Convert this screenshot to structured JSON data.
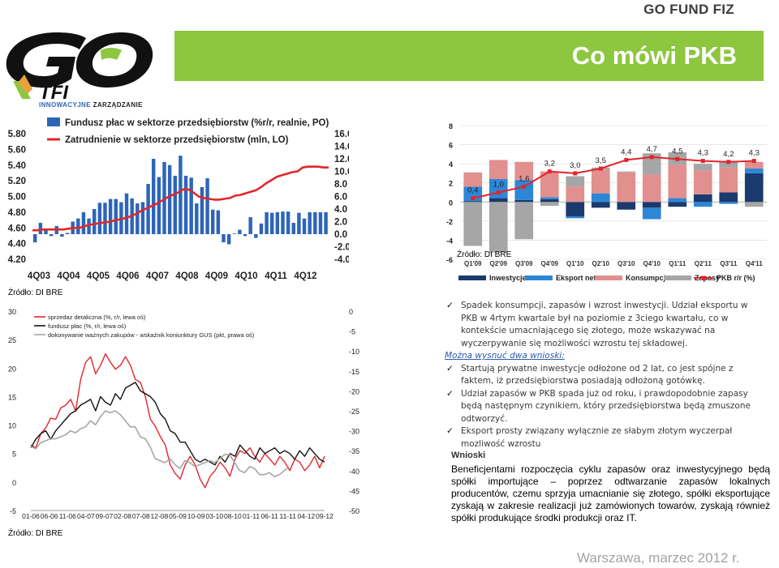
{
  "brand": "GO FUND FIZ",
  "title": "Co mówi PKB",
  "logo": {
    "tagline_bold": "INNOWACYJNE",
    "tagline_rest": " ZARZĄDZANIE",
    "letters": "GO",
    "sub": "TFI"
  },
  "colors": {
    "accent": "#8dc63f",
    "bar_blue": "#2d65b8",
    "line_red": "#e1262c"
  },
  "notes": {
    "bullet1": "Spadek konsumpcji,  zapasów i wzrost inwestycji. Udział eksportu w PKB w 4rtym kwartale był na poziomie z 3ciego kwartału, co w kontekście umacniającego się złotego, może wskazywać na wyczerpywanie się możliwości wzrostu tej składowej.",
    "subhead": "Można wysnuć dwa wnioski:",
    "bullet2": "Startują prywatne inwestycje odłożone od 2 lat, co jest spójne z faktem, iż przedsiębiorstwa posiadają odłożoną gotówkę.",
    "bullet3": "Udział zapasów w PKB spada już od roku, i prawdopodobnie zapasy będą następnym czynikiem, który przedsiębiorstwa będą zmuszone odtworzyć.",
    "bullet4": "Eksport prosty związany wyłącznie  ze słabym  złotym wyczerpał mozliwość wzrostu"
  },
  "conclusions": {
    "head": "Wnioski",
    "body": "Beneficjentami rozpoczęcia cyklu zapasów oraz inwestycyjnego będą spółki importujące – poprzez odtwarzanie zapasów lokalnych producentów, czemu sprzyja umacnianie się złotego, spółki eksportujące zyskają w zakresie realizacji już zamówionych towarów, zyskają również spółki produkujące środki produkcji oraz IT."
  },
  "footer": "Warszawa, marzec 2012 r.",
  "chart_data": [
    {
      "type": "bar",
      "legend": [
        "Fundusz płac w sektorze przedsiębiorstw (%r/r, realnie, PO)",
        "Zatrudnienie w sektorze przedsiębiorstw (mln, LO)"
      ],
      "source": "Źródło: DI  BRE",
      "left_ticks": [
        "5.80",
        "5.60",
        "5.40",
        "5.20",
        "5.00",
        "4.80",
        "4.60",
        "4.40",
        "4.20"
      ],
      "right_ticks": [
        "16.0",
        "14.0",
        "12.0",
        "10.0",
        "8.0",
        "6.0",
        "4.0",
        "2.0",
        "0.0",
        "-2.0",
        "-4.0"
      ],
      "x_labels": [
        "4Q03",
        "4Q04",
        "4Q05",
        "4Q06",
        "4Q07",
        "4Q08",
        "4Q09",
        "4Q10",
        "4Q11",
        "4Q12"
      ],
      "ylim_left": [
        4.2,
        5.8
      ],
      "ylim_right": [
        -4,
        16
      ],
      "series": [
        {
          "name": "Fundusz płac w sektorze przedsiębiorstw (%r/r, realnie, PO)",
          "kind": "bar",
          "values": [
            -1.3,
            1.8,
            0.7,
            -0.3,
            1.3,
            -0.4,
            0.2,
            2.0,
            2.5,
            3.5,
            2.5,
            4.0,
            5.0,
            5.0,
            5.6,
            5.6,
            5.1,
            6.5,
            5.7,
            4.9,
            5.1,
            8.0,
            12.0,
            9.1,
            11.5,
            11.0,
            9.3,
            12.5,
            9.3,
            9.0,
            4.9,
            7.5,
            8.9,
            3.9,
            3.8,
            -1.3,
            -1.6,
            0.1,
            0.7,
            -0.3,
            2.7,
            -0.6,
            1.7,
            3.5,
            3.4,
            3.5,
            3.6,
            3.6,
            1.8,
            3.4,
            2.5,
            3.5,
            3.5,
            3.5,
            3.5
          ]
        },
        {
          "name": "Zatrudnienie w sektorze przedsiębiorstw (mln, LO)",
          "kind": "line",
          "values": [
            4.57,
            4.57,
            4.58,
            4.58,
            4.58,
            4.58,
            4.58,
            4.59,
            4.6,
            4.6,
            4.62,
            4.64,
            4.65,
            4.66,
            4.67,
            4.68,
            4.7,
            4.71,
            4.73,
            4.75,
            4.78,
            4.82,
            4.85,
            4.88,
            4.91,
            4.95,
            4.99,
            5.02,
            5.05,
            5.09,
            5.09,
            5.05,
            5.0,
            4.98,
            4.97,
            4.96,
            4.96,
            4.97,
            4.98,
            5.01,
            5.02,
            5.04,
            5.06,
            5.08,
            5.12,
            5.17,
            5.21,
            5.25,
            5.27,
            5.29,
            5.31,
            5.32,
            5.37,
            5.38,
            5.38,
            5.38,
            5.37,
            5.37
          ]
        }
      ]
    },
    {
      "type": "bar",
      "stacked": true,
      "source": "Źródło: DI  BRE",
      "categories": [
        "Q1'09",
        "Q2'09",
        "Q3'09",
        "Q4'09",
        "Q1'10",
        "Q2'10",
        "Q3'10",
        "Q4'10",
        "Q1'11",
        "Q2'11",
        "Q3'11",
        "Q4'11"
      ],
      "ylim": [
        -6,
        8
      ],
      "y_ticks": [
        "8",
        "6",
        "4",
        "2",
        "0",
        "-2",
        "-4",
        "-6"
      ],
      "series": [
        {
          "name": "Inwestycje",
          "values": [
            0.1,
            0.4,
            0.2,
            0.3,
            -1.5,
            -0.6,
            -0.8,
            -0.6,
            -0.5,
            0.8,
            1.0,
            3.0
          ]
        },
        {
          "name": "Eksport netto",
          "values": [
            1.5,
            2.0,
            2.1,
            0.2,
            -0.2,
            0.9,
            0.0,
            -1.2,
            0.4,
            -0.5,
            -0.2,
            0.5
          ]
        },
        {
          "name": "Konsumpcja",
          "values": [
            1.5,
            2.0,
            1.9,
            2.7,
            1.6,
            2.5,
            3.1,
            2.9,
            3.5,
            2.5,
            2.6,
            0.7
          ]
        },
        {
          "name": "Zapasy",
          "values": [
            -4.6,
            -5.3,
            -3.9,
            -0.4,
            1.1,
            0.2,
            0.1,
            2.2,
            1.3,
            0.7,
            0.7,
            -0.5
          ]
        },
        {
          "name": "PKB r/r (%)",
          "kind": "line",
          "values": [
            0.4,
            1.0,
            1.6,
            3.2,
            3.0,
            3.5,
            4.4,
            4.7,
            4.5,
            4.3,
            4.2,
            4.3
          ]
        }
      ],
      "data_labels": [
        "0,4",
        "1,0",
        "1,6",
        "3,2",
        "3,0",
        "3,5",
        "4,4",
        "4,7",
        "4,5",
        "4,3",
        "4,2",
        "4,3"
      ]
    },
    {
      "type": "line",
      "source": "Źródło: DI  BRE",
      "legend": [
        "sprzedaz detaliczna (%, r/r, lewa oś)",
        "fundusz płac (%, r/r, lewa oś)",
        "dokonywanie ważnych zakupów - wskaźnik koniunktury GUS (pkt, prawa oś)"
      ],
      "left_ticks": [
        "30",
        "25",
        "20",
        "15",
        "10",
        "5",
        "0",
        "-5"
      ],
      "right_ticks": [
        "0",
        "-5",
        "-10",
        "-15",
        "-20",
        "-25",
        "-30",
        "-35",
        "-40",
        "-45",
        "-50"
      ],
      "x_labels": [
        "01-06",
        "06-06",
        "11-06",
        "04-07",
        "09-07",
        "02-08",
        "07-08",
        "12-08",
        "05-09",
        "10-09",
        "03-10",
        "08-10",
        "01-11",
        "06-11",
        "11-11",
        "04-12",
        "09-12"
      ],
      "ylim_left": [
        -5,
        30
      ],
      "ylim_right": [
        -50,
        0
      ],
      "series": [
        {
          "name": "sprzedaz detaliczna (%, r/r, lewa oś)",
          "values": [
            6.5,
            6.0,
            8.5,
            9.5,
            11.2,
            11.0,
            13.0,
            13.5,
            14.5,
            12.5,
            18.0,
            21.0,
            22.0,
            19.0,
            20.5,
            22.5,
            21.0,
            19.8,
            20.5,
            22.0,
            20.5,
            18.0,
            17.5,
            15.0,
            11.0,
            9.8,
            8.0,
            6.5,
            3.0,
            1.5,
            0.5,
            3.0,
            4.5,
            3.0,
            0.5,
            -1.0,
            1.0,
            2.0,
            3.5,
            2.5,
            1.0,
            4.0,
            5.5,
            5.0,
            6.0,
            4.5,
            3.5,
            5.0,
            4.0,
            3.0,
            4.5,
            3.5,
            2.0,
            4.0,
            3.5,
            2.0,
            3.0,
            4.5,
            2.5,
            4.5
          ]
        },
        {
          "name": "fundusz płac (%, r/r, lewa oś)",
          "values": [
            6.0,
            7.5,
            8.5,
            9.0,
            7.5,
            9.0,
            10.0,
            11.0,
            12.0,
            12.5,
            13.5,
            14.0,
            14.5,
            12.5,
            15.0,
            14.0,
            13.5,
            15.5,
            14.5,
            16.5,
            17.0,
            17.5,
            16.0,
            15.5,
            15.0,
            14.0,
            12.0,
            11.0,
            9.0,
            8.5,
            7.0,
            7.0,
            5.5,
            4.0,
            3.5,
            4.0,
            3.5,
            3.0,
            4.5,
            3.5,
            5.0,
            4.5,
            6.5,
            5.5,
            4.5,
            4.0,
            6.0,
            5.0,
            5.5,
            6.0,
            5.0,
            5.5,
            5.0,
            4.0,
            5.5,
            4.5,
            6.0,
            5.0,
            4.0,
            3.5
          ]
        },
        {
          "name": "dokonywanie ważnych zakupów - wskaźnik koniunktury GUS (pkt, prawa oś)",
          "values": [
            -34,
            -34.5,
            -33,
            -32.5,
            -32,
            -32,
            -31.5,
            -31,
            -30,
            -30.5,
            -29.5,
            -29,
            -27.5,
            -28.5,
            -26.5,
            -25,
            -25.5,
            -25,
            -26,
            -27.5,
            -29,
            -29,
            -31.5,
            -32,
            -34,
            -37,
            -37.5,
            -38,
            -37,
            -38.5,
            -39.5,
            -37.5,
            -38,
            -39,
            -38.5,
            -38,
            -37.5,
            -38,
            -37,
            -36,
            -36,
            -38,
            -40,
            -40.5,
            -39,
            -39.5,
            -41,
            -41,
            -40.5,
            -41.5,
            -41,
            -40,
            -39
          ]
        }
      ]
    }
  ]
}
